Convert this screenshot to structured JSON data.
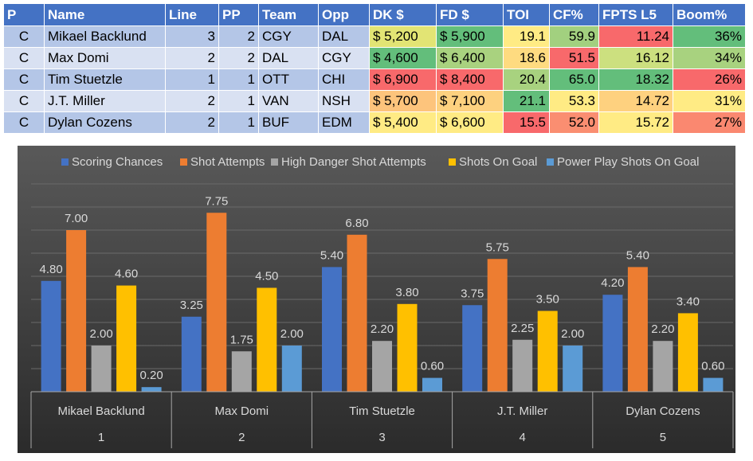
{
  "table": {
    "columns": [
      "P",
      "Name",
      "Line",
      "PP",
      "Team",
      "Opp",
      "DK $",
      "FD $",
      "TOI",
      "CF%",
      "FPTS L5",
      "Boom%"
    ],
    "rows": [
      {
        "p": "C",
        "name": "Mikael Backlund",
        "line": "3",
        "pp": "2",
        "team": "CGY",
        "opp": "DAL",
        "dk": "$ 5,200",
        "fd": "$ 5,900",
        "toi": "19.1",
        "cf": "59.9",
        "fpts": "11.24",
        "boom": "36%"
      },
      {
        "p": "C",
        "name": "Max Domi",
        "line": "2",
        "pp": "2",
        "team": "DAL",
        "opp": "CGY",
        "dk": "$ 4,600",
        "fd": "$ 6,400",
        "toi": "18.6",
        "cf": "51.5",
        "fpts": "16.12",
        "boom": "34%"
      },
      {
        "p": "C",
        "name": "Tim Stuetzle",
        "line": "1",
        "pp": "1",
        "team": "OTT",
        "opp": "CHI",
        "dk": "$ 6,900",
        "fd": "$ 8,400",
        "toi": "20.4",
        "cf": "65.0",
        "fpts": "18.32",
        "boom": "26%"
      },
      {
        "p": "C",
        "name": "J.T. Miller",
        "line": "2",
        "pp": "1",
        "team": "VAN",
        "opp": "NSH",
        "dk": "$ 5,700",
        "fd": "$ 7,100",
        "toi": "21.1",
        "cf": "53.3",
        "fpts": "14.72",
        "boom": "31%"
      },
      {
        "p": "C",
        "name": "Dylan Cozens",
        "line": "2",
        "pp": "1",
        "team": "BUF",
        "opp": "EDM",
        "dk": "$ 5,400",
        "fd": "$ 6,600",
        "toi": "15.5",
        "cf": "52.0",
        "fpts": "15.72",
        "boom": "27%"
      }
    ],
    "cell_colors": {
      "dk": [
        "#e2e474",
        "#63be7b",
        "#f8696b",
        "#fdc47c",
        "#ffeb84"
      ],
      "fd": [
        "#63be7b",
        "#a9d27f",
        "#f8696b",
        "#fdd17f",
        "#ffeb84"
      ],
      "toi": [
        "#ffeb84",
        "#fedb80",
        "#a8d27f",
        "#63be7b",
        "#f8696b"
      ],
      "cf": [
        "#a2d07f",
        "#f8696b",
        "#63be7b",
        "#ffeb84",
        "#fa8e71"
      ],
      "fpts": [
        "#f8696b",
        "#cce07f",
        "#63be7b",
        "#fed17f",
        "#ffeb84"
      ],
      "boom": [
        "#63be7b",
        "#a8d27f",
        "#f8696b",
        "#ffeb84",
        "#fa8870"
      ]
    }
  },
  "chart_data": {
    "type": "bar",
    "title": "",
    "categories": [
      "Mikael Backlund",
      "Max Domi",
      "Tim Stuetzle",
      "J.T. Miller",
      "Dylan Cozens"
    ],
    "category_numbers": [
      "1",
      "2",
      "3",
      "4",
      "5"
    ],
    "series": [
      {
        "name": "Scoring Chances",
        "color": "#4472c4",
        "values": [
          4.8,
          3.25,
          5.4,
          3.75,
          4.2
        ]
      },
      {
        "name": "Shot Attempts",
        "color": "#ed7d31",
        "values": [
          7.0,
          7.75,
          6.8,
          5.75,
          5.4
        ]
      },
      {
        "name": "High Danger Shot Attempts",
        "color": "#a5a5a5",
        "values": [
          2.0,
          1.75,
          2.2,
          2.25,
          2.2
        ]
      },
      {
        "name": "Shots On Goal",
        "color": "#ffc000",
        "values": [
          4.6,
          4.5,
          3.8,
          3.5,
          3.4
        ]
      },
      {
        "name": "Power Play Shots On Goal",
        "color": "#5b9bd5",
        "values": [
          0.2,
          2.0,
          0.6,
          2.0,
          0.6
        ]
      }
    ],
    "ylim": [
      0,
      9
    ],
    "legend_position": "top",
    "xlabel": "",
    "ylabel": "",
    "colors": {
      "background_top": "#595959",
      "background_bottom": "#2b2b2b",
      "text": "#d9d9d9"
    }
  }
}
